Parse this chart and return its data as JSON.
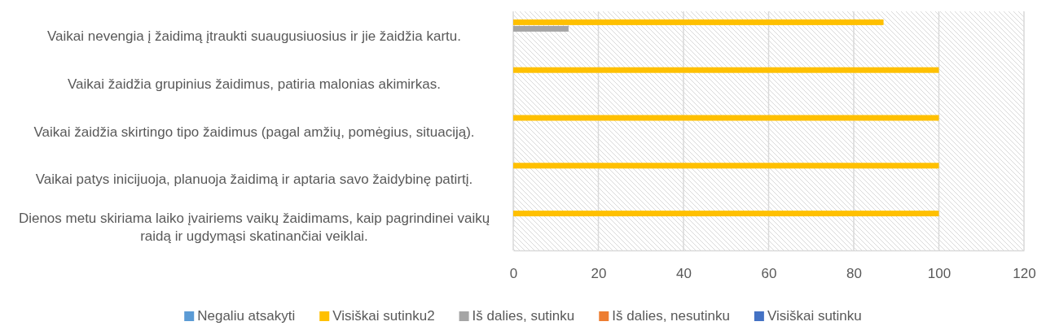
{
  "chart_data": {
    "type": "bar",
    "orientation": "horizontal",
    "categories": [
      "Vaikai nevengia į žaidimą įtraukti suaugusiuosius ir jie žaidžia kartu.",
      "Vaikai žaidžia grupinius žaidimus, patiria malonias akimirkas.",
      "Vaikai žaidžia skirtingo tipo žaidimus (pagal amžių, pomėgius, situaciją).",
      "Vaikai patys inicijuoja, planuoja žaidimą ir aptaria savo žaidybinę patirtį.",
      "Dienos metu skiriama laiko įvairiems vaikų žaidimams, kaip pagrindinei vaikų raidą ir ugdymąsi skatinančiai veiklai."
    ],
    "series": [
      {
        "name": "Negaliu atsakyti",
        "color": "#5b9bd5",
        "values": [
          0,
          0,
          0,
          0,
          0
        ]
      },
      {
        "name": "Visiškai sutinku2",
        "color": "#ffc000",
        "values": [
          87,
          100,
          100,
          100,
          100
        ]
      },
      {
        "name": "Iš dalies, sutinku",
        "color": "#a5a5a5",
        "values": [
          13,
          0,
          0,
          0,
          0
        ]
      },
      {
        "name": "Iš dalies, nesutinku",
        "color": "#ed7d31",
        "values": [
          0,
          0,
          0,
          0,
          0
        ]
      },
      {
        "name": "Visiškai sutinku",
        "color": "#4472c4",
        "values": [
          0,
          0,
          0,
          0,
          0
        ]
      }
    ],
    "xlim": [
      0,
      120
    ],
    "xticks": [
      0,
      20,
      40,
      60,
      80,
      100,
      120
    ],
    "grid": "x",
    "legend": "bottom"
  }
}
